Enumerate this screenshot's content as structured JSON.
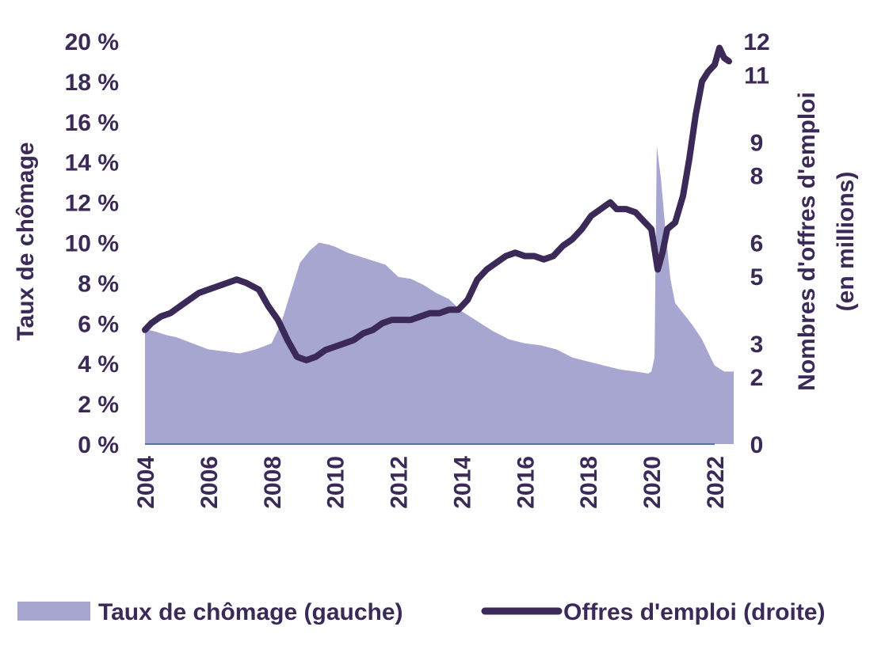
{
  "chart_data": {
    "type": "area+line",
    "colors": {
      "area": "#a6a6d0",
      "line": "#3b2a58",
      "text": "#3b2a58",
      "baseline": "#5a6fa8"
    },
    "y_left": {
      "label": "Taux de chômage",
      "range": [
        0,
        20
      ],
      "ticks": [
        "0 %",
        "2 %",
        "4 %",
        "6 %",
        "8 %",
        "10 %",
        "12 %",
        "14 %",
        "16 %",
        "18 %",
        "20 %"
      ]
    },
    "y_right": {
      "label_line1": "Nombres d'offres d'emploi",
      "label_line2": "(en millions)",
      "range": [
        0,
        12
      ],
      "ticks": [
        "0",
        "2",
        "3",
        "5",
        "6",
        "8",
        "9",
        "11",
        "12"
      ],
      "tick_values": [
        0,
        2,
        3,
        5,
        6,
        8,
        9,
        11,
        12
      ]
    },
    "x_axis": {
      "range": [
        2004,
        2022
      ],
      "ticks": [
        "2004",
        "2006",
        "2008",
        "2010",
        "2012",
        "2014",
        "2016",
        "2018",
        "2020",
        "2022"
      ]
    },
    "series": [
      {
        "name": "Taux de chômage (gauche)",
        "kind": "area",
        "axis": "left",
        "points": [
          [
            2004.0,
            5.7
          ],
          [
            2004.3,
            5.6
          ],
          [
            2004.7,
            5.4
          ],
          [
            2005.0,
            5.3
          ],
          [
            2005.5,
            5.0
          ],
          [
            2006.0,
            4.7
          ],
          [
            2006.5,
            4.6
          ],
          [
            2007.0,
            4.5
          ],
          [
            2007.5,
            4.7
          ],
          [
            2008.0,
            5.0
          ],
          [
            2008.3,
            6.0
          ],
          [
            2008.6,
            7.5
          ],
          [
            2008.9,
            9.0
          ],
          [
            2009.2,
            9.6
          ],
          [
            2009.5,
            10.0
          ],
          [
            2009.8,
            9.9
          ],
          [
            2010.0,
            9.8
          ],
          [
            2010.4,
            9.5
          ],
          [
            2010.8,
            9.3
          ],
          [
            2011.2,
            9.1
          ],
          [
            2011.6,
            8.9
          ],
          [
            2012.0,
            8.3
          ],
          [
            2012.4,
            8.2
          ],
          [
            2012.8,
            7.9
          ],
          [
            2013.2,
            7.5
          ],
          [
            2013.6,
            7.2
          ],
          [
            2014.0,
            6.6
          ],
          [
            2014.5,
            6.1
          ],
          [
            2015.0,
            5.6
          ],
          [
            2015.5,
            5.2
          ],
          [
            2016.0,
            5.0
          ],
          [
            2016.5,
            4.9
          ],
          [
            2017.0,
            4.7
          ],
          [
            2017.5,
            4.3
          ],
          [
            2018.0,
            4.1
          ],
          [
            2018.5,
            3.9
          ],
          [
            2019.0,
            3.7
          ],
          [
            2019.5,
            3.6
          ],
          [
            2019.9,
            3.5
          ],
          [
            2020.0,
            3.6
          ],
          [
            2020.1,
            4.3
          ],
          [
            2020.17,
            14.8
          ],
          [
            2020.3,
            13.2
          ],
          [
            2020.45,
            10.5
          ],
          [
            2020.6,
            8.2
          ],
          [
            2020.75,
            7.0
          ],
          [
            2021.0,
            6.5
          ],
          [
            2021.3,
            5.9
          ],
          [
            2021.6,
            5.2
          ],
          [
            2021.9,
            4.2
          ],
          [
            2022.0,
            3.9
          ],
          [
            2022.3,
            3.6
          ],
          [
            2022.6,
            3.6
          ]
        ]
      },
      {
        "name": "Offres d'emploi (droite)",
        "kind": "line",
        "axis": "right",
        "points": [
          [
            2004.0,
            3.4
          ],
          [
            2004.2,
            3.6
          ],
          [
            2004.5,
            3.8
          ],
          [
            2004.8,
            3.9
          ],
          [
            2005.1,
            4.1
          ],
          [
            2005.4,
            4.3
          ],
          [
            2005.7,
            4.5
          ],
          [
            2006.0,
            4.6
          ],
          [
            2006.3,
            4.7
          ],
          [
            2006.6,
            4.8
          ],
          [
            2006.9,
            4.9
          ],
          [
            2007.2,
            4.8
          ],
          [
            2007.6,
            4.6
          ],
          [
            2007.9,
            4.1
          ],
          [
            2008.2,
            3.7
          ],
          [
            2008.5,
            3.1
          ],
          [
            2008.8,
            2.6
          ],
          [
            2009.1,
            2.5
          ],
          [
            2009.4,
            2.6
          ],
          [
            2009.7,
            2.8
          ],
          [
            2010.0,
            2.9
          ],
          [
            2010.3,
            3.0
          ],
          [
            2010.6,
            3.1
          ],
          [
            2010.9,
            3.3
          ],
          [
            2011.2,
            3.4
          ],
          [
            2011.5,
            3.6
          ],
          [
            2011.8,
            3.7
          ],
          [
            2012.1,
            3.7
          ],
          [
            2012.4,
            3.7
          ],
          [
            2012.7,
            3.8
          ],
          [
            2013.0,
            3.9
          ],
          [
            2013.3,
            3.9
          ],
          [
            2013.6,
            4.0
          ],
          [
            2013.9,
            4.0
          ],
          [
            2014.2,
            4.3
          ],
          [
            2014.5,
            4.9
          ],
          [
            2014.8,
            5.2
          ],
          [
            2015.1,
            5.4
          ],
          [
            2015.4,
            5.6
          ],
          [
            2015.7,
            5.7
          ],
          [
            2016.0,
            5.6
          ],
          [
            2016.3,
            5.6
          ],
          [
            2016.6,
            5.5
          ],
          [
            2016.9,
            5.6
          ],
          [
            2017.2,
            5.9
          ],
          [
            2017.5,
            6.1
          ],
          [
            2017.8,
            6.4
          ],
          [
            2018.1,
            6.8
          ],
          [
            2018.4,
            7.0
          ],
          [
            2018.7,
            7.2
          ],
          [
            2018.9,
            7.0
          ],
          [
            2019.2,
            7.0
          ],
          [
            2019.5,
            6.9
          ],
          [
            2019.8,
            6.6
          ],
          [
            2020.0,
            6.4
          ],
          [
            2020.1,
            5.8
          ],
          [
            2020.2,
            5.2
          ],
          [
            2020.35,
            5.7
          ],
          [
            2020.5,
            6.4
          ],
          [
            2020.75,
            6.6
          ],
          [
            2021.0,
            7.4
          ],
          [
            2021.2,
            8.5
          ],
          [
            2021.4,
            9.8
          ],
          [
            2021.6,
            10.8
          ],
          [
            2021.8,
            11.1
          ],
          [
            2022.0,
            11.3
          ],
          [
            2022.15,
            11.8
          ],
          [
            2022.3,
            11.5
          ],
          [
            2022.45,
            11.4
          ]
        ]
      }
    ]
  }
}
